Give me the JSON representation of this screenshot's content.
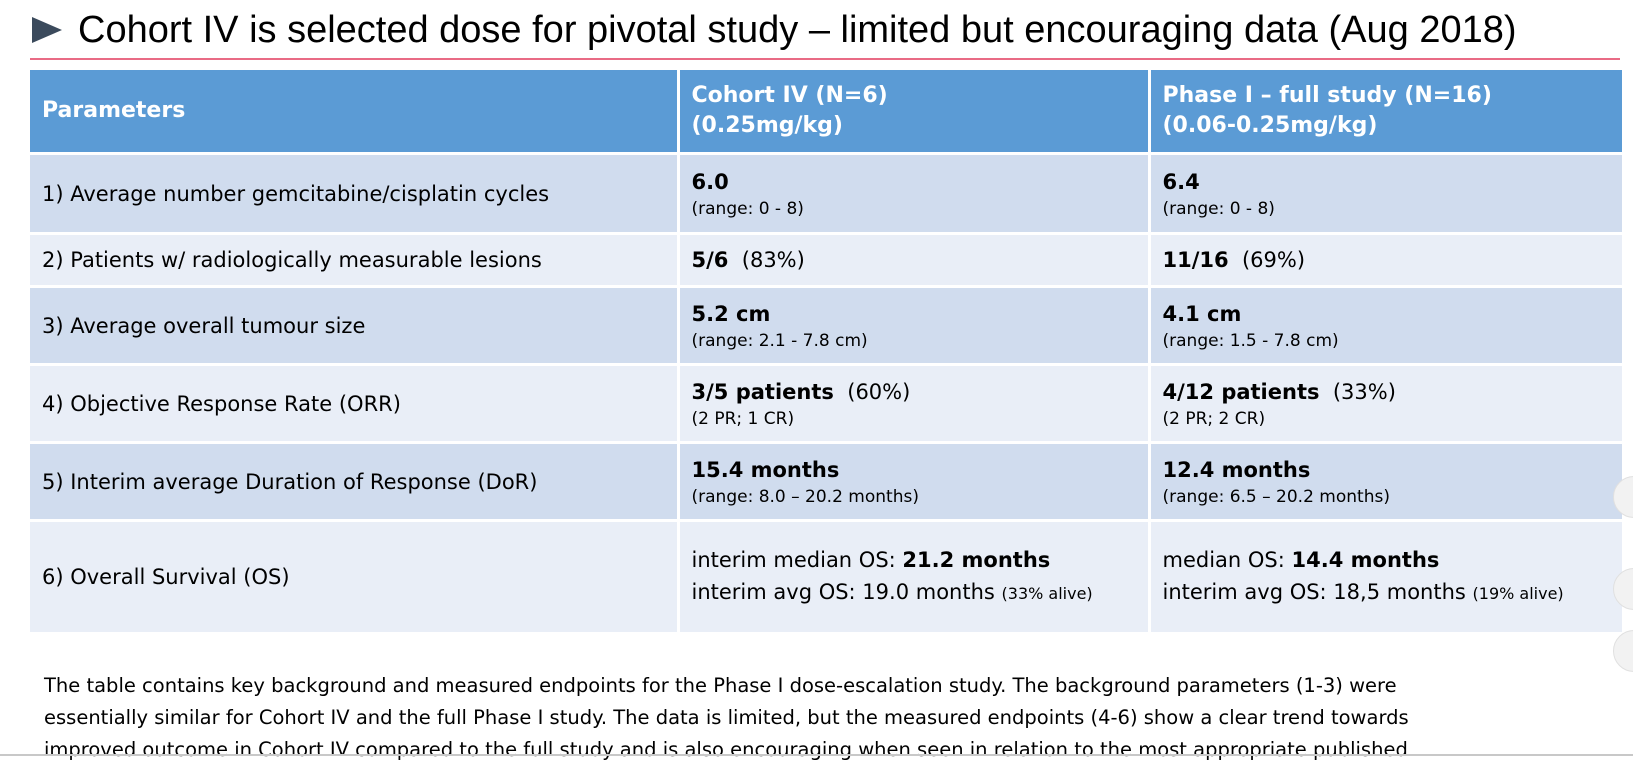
{
  "title": "Cohort IV is selected dose for pivotal study – limited but encouraging data (Aug 2018)",
  "table": {
    "headers": {
      "col1": "Parameters",
      "col2_line1": "Cohort IV  (N=6)",
      "col2_line2": "(0.25mg/kg)",
      "col3_line1": "Phase I – full study  (N=16)",
      "col3_line2": "(0.06-0.25mg/kg)"
    },
    "rows": [
      {
        "param": "1) Average number gemcitabine/cisplatin cycles",
        "c2": {
          "bold": "6.0",
          "plain": "",
          "sub": "(range: 0 - 8)"
        },
        "c3": {
          "bold": "6.4",
          "plain": "",
          "sub": "(range: 0 - 8)"
        }
      },
      {
        "param": "2) Patients w/ radiologically measurable lesions",
        "c2": {
          "bold": "5/6",
          "plain": "(83%)"
        },
        "c3": {
          "bold": "11/16",
          "plain": "(69%)"
        }
      },
      {
        "param": "3) Average overall tumour size",
        "c2": {
          "bold": "5.2 cm",
          "plain": "",
          "sub": "(range: 2.1 - 7.8 cm)"
        },
        "c3": {
          "bold": "4.1 cm",
          "plain": "",
          "sub": "(range: 1.5 - 7.8 cm)"
        }
      },
      {
        "param": "4) Objective Response Rate (ORR)",
        "c2": {
          "bold": "3/5 patients",
          "plain": "(60%)",
          "sub": "(2 PR; 1 CR)"
        },
        "c3": {
          "bold": "4/12 patients",
          "plain": "(33%)",
          "sub": "(2 PR; 2 CR)"
        }
      },
      {
        "param": "5) Interim average Duration of Response (DoR)",
        "c2": {
          "bold": "15.4 months",
          "plain": "",
          "sub": "(range: 8.0 – 20.2 months)"
        },
        "c3": {
          "bold": "12.4 months",
          "plain": "",
          "sub": "(range: 6.5 – 20.2 months)"
        }
      },
      {
        "param": "6) Overall Survival (OS)",
        "c2": {
          "line1_prefix": "interim median OS: ",
          "line1_bold": "21.2 months",
          "line2_main": "interim avg OS: 19.0 months ",
          "line2_small": "(33% alive)"
        },
        "c3": {
          "line1_prefix": "median OS: ",
          "line1_bold": "14.4 months",
          "line2_main": "interim avg OS: 18,5 months ",
          "line2_small": "(19% alive)"
        }
      }
    ]
  },
  "paragraph": {
    "line1": "The table contains key background and measured endpoints for the Phase I dose-escalation study.  The background parameters (1-3) were",
    "line2": "essentially similar for Cohort IV and the full Phase I study. The data is limited, but the measured endpoints (4-6) show a clear trend towards",
    "line3": "improved outcome in Cohort IV compared to the full study and is also encouraging when seen in relation to the most appropriate published"
  },
  "colors": {
    "header_bg": "#5b9bd5",
    "row_dark": "#d0dcee",
    "row_light": "#e9eef7",
    "title_rule": "#e96b85",
    "bullet": "#3b4a5c"
  }
}
